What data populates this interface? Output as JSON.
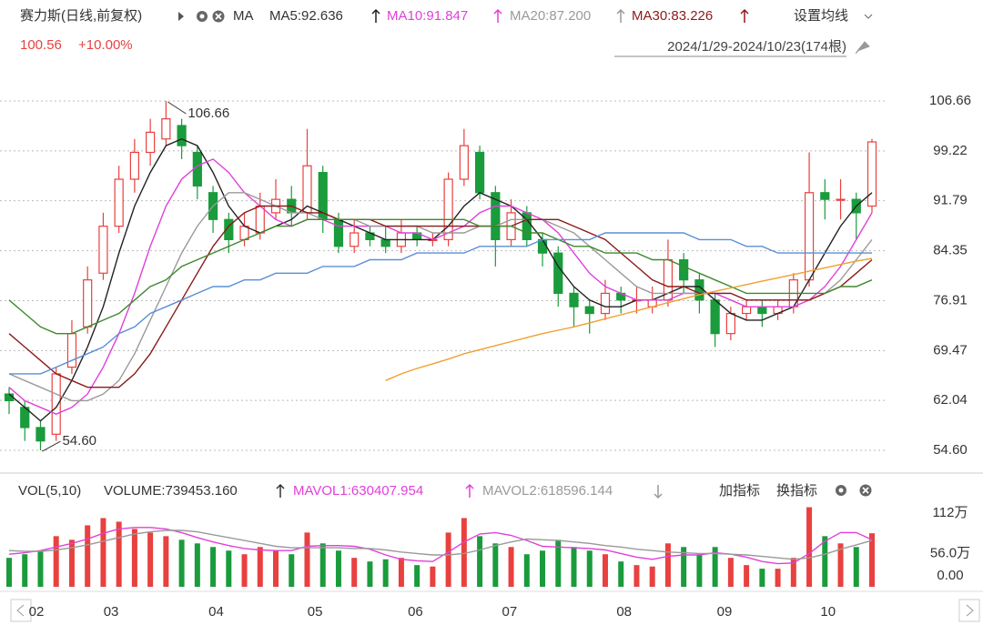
{
  "chart_data": [
    {
      "type": "candlestick",
      "title": "赛力斯(日线,前复权)",
      "indicator": "MA",
      "price": "100.56",
      "change": "+10.00%",
      "range_label": "2024/1/29-2024/10/23(174根)",
      "settings": "设置均线",
      "up_color": "#e8413f",
      "down_color": "#1a9b3c",
      "open": [
        63,
        61,
        58,
        57,
        67,
        73,
        81,
        88,
        95,
        99,
        101,
        103,
        99,
        93,
        89,
        86,
        87,
        90,
        92,
        90,
        96,
        89,
        85,
        87,
        86,
        85,
        87,
        86,
        86,
        95,
        99,
        93,
        86,
        90,
        86,
        84,
        78,
        76,
        75,
        78,
        77,
        76,
        77,
        83,
        80,
        77,
        72,
        75,
        76,
        75,
        76,
        80,
        93,
        92,
        92,
        91
      ],
      "high": [
        64,
        62,
        59,
        67,
        74,
        82,
        90,
        97,
        101,
        104,
        106.66,
        104,
        100,
        94,
        90,
        90,
        93,
        95,
        94,
        102.5,
        97,
        90,
        89,
        88,
        88,
        89,
        88,
        87,
        96,
        102.5,
        100,
        94,
        92,
        91,
        87,
        85,
        79,
        77,
        80,
        79,
        79,
        79,
        86,
        84,
        81,
        78,
        76,
        77,
        77,
        77,
        81,
        99,
        95,
        95,
        93,
        101
      ],
      "low": [
        60,
        56,
        54.6,
        56,
        66,
        72,
        80,
        87,
        93,
        97,
        100,
        98,
        92,
        87,
        84,
        85,
        86,
        89,
        88,
        89,
        87,
        84,
        84,
        85,
        84,
        84,
        85,
        85,
        85,
        94,
        92,
        82,
        85,
        85,
        82,
        76,
        73,
        72,
        74,
        75,
        75,
        75,
        76,
        78,
        75,
        70,
        71,
        74,
        73,
        74,
        75,
        79,
        89,
        89,
        86,
        90
      ],
      "close": [
        62,
        58,
        56,
        66,
        72,
        80,
        88,
        95,
        99,
        102,
        104,
        100,
        94,
        89,
        86,
        88,
        91,
        92,
        90,
        97,
        89,
        85,
        87,
        86,
        85,
        87,
        86,
        86,
        95,
        100,
        93,
        86,
        90,
        86,
        84,
        78,
        76,
        75,
        78,
        77,
        77,
        77,
        83,
        80,
        77,
        72,
        75,
        76,
        75,
        76,
        80,
        93,
        92,
        92,
        90,
        100.56
      ],
      "series": [
        {
          "name": "MA5:92.636",
          "color": "#222222",
          "values": [
            63,
            61,
            59,
            61,
            65,
            70,
            76,
            84,
            91,
            96,
            100,
            101,
            100,
            96,
            91,
            88,
            87,
            88,
            89,
            91,
            90,
            89,
            88,
            87,
            86,
            86,
            86,
            86,
            88,
            91,
            93,
            92,
            91,
            89,
            86,
            82,
            79,
            77,
            76,
            76,
            77,
            77,
            78,
            79,
            79,
            77,
            75,
            74,
            74,
            75,
            76,
            80,
            84,
            88,
            91,
            93
          ]
        },
        {
          "name": "MA10:91.847",
          "color": "#e040d8",
          "values": [
            64,
            62,
            61,
            60,
            61,
            63,
            67,
            72,
            78,
            85,
            91,
            95,
            97,
            98,
            96,
            93,
            91,
            89,
            88,
            89,
            89,
            88,
            88,
            88,
            88,
            87,
            87,
            86,
            87,
            88,
            90,
            91,
            91,
            90,
            89,
            87,
            84,
            81,
            79,
            78,
            77,
            77,
            77,
            78,
            78,
            78,
            77,
            76,
            76,
            76,
            76,
            77,
            79,
            82,
            86,
            90
          ]
        },
        {
          "name": "MA20:87.200",
          "color": "#9a9a9a",
          "values": [
            66,
            65,
            64,
            63,
            62,
            62,
            63,
            65,
            69,
            74,
            79,
            84,
            88,
            91,
            93,
            93,
            92,
            91,
            90,
            90,
            89,
            89,
            89,
            88,
            88,
            88,
            88,
            87,
            87,
            87,
            88,
            88,
            89,
            89,
            89,
            88,
            87,
            85,
            83,
            81,
            79,
            78,
            78,
            78,
            78,
            78,
            78,
            77,
            77,
            77,
            77,
            77,
            78,
            80,
            83,
            86
          ]
        },
        {
          "name": "MA30:83.226",
          "color": "#8b1a1a",
          "values": [
            72,
            70,
            68,
            66,
            65,
            64,
            64,
            64,
            66,
            69,
            73,
            77,
            81,
            85,
            88,
            90,
            91,
            91,
            91,
            90,
            90,
            89,
            89,
            89,
            88,
            88,
            88,
            88,
            88,
            88,
            88,
            88,
            88,
            89,
            89,
            89,
            88,
            87,
            86,
            84,
            82,
            80,
            79,
            79,
            78,
            78,
            78,
            77,
            77,
            77,
            77,
            77,
            78,
            79,
            81,
            83
          ]
        },
        {
          "color": "#3c8a2e",
          "values": [
            77,
            75,
            73,
            72,
            72,
            73,
            74,
            75,
            77,
            79,
            80,
            82,
            83,
            84,
            85,
            86,
            87,
            88,
            88,
            89,
            89,
            89,
            89,
            89,
            89,
            89,
            89,
            89,
            89,
            89,
            88,
            88,
            88,
            87,
            87,
            86,
            85,
            85,
            84,
            84,
            84,
            83,
            83,
            82,
            81,
            80,
            79,
            78,
            78,
            78,
            78,
            78,
            78,
            79,
            79,
            80
          ]
        },
        {
          "color": "#5b8fd6",
          "values": [
            66,
            66,
            66,
            67,
            68,
            69,
            70,
            72,
            73,
            75,
            76,
            77,
            78,
            79,
            79,
            80,
            80,
            81,
            81,
            81,
            82,
            82,
            82,
            83,
            83,
            83,
            84,
            84,
            84,
            84,
            85,
            85,
            85,
            85,
            86,
            86,
            86,
            86,
            87,
            87,
            87,
            87,
            87,
            87,
            86,
            86,
            86,
            85,
            85,
            84,
            84,
            84,
            84,
            84,
            84,
            84
          ]
        },
        {
          "color": "#f0a030",
          "values": [
            null,
            null,
            null,
            null,
            null,
            null,
            null,
            null,
            null,
            null,
            null,
            null,
            null,
            null,
            null,
            null,
            null,
            null,
            null,
            null,
            null,
            null,
            null,
            null,
            65,
            66,
            66.8,
            67.5,
            68.2,
            69,
            69.6,
            70.2,
            70.8,
            71.4,
            72,
            72.5,
            73,
            73.6,
            74.2,
            74.8,
            75.4,
            76,
            76.6,
            77.2,
            77.8,
            78.3,
            78.8,
            79.3,
            79.8,
            80.3,
            80.8,
            81.3,
            81.8,
            82.3,
            82.8,
            83.2
          ]
        }
      ],
      "annotations": [
        {
          "index": 10,
          "value": 106.66,
          "label": "106.66"
        },
        {
          "index": 2,
          "value": 54.6,
          "label": "54.60"
        }
      ],
      "ylim": [
        52.57,
        108.15
      ],
      "yticks": [
        106.66,
        99.22,
        91.79,
        84.35,
        76.91,
        69.47,
        62.04,
        {
          "value": 54.6,
          "label": "54.60"
        }
      ],
      "xticks": [
        {
          "value": 1.74,
          "label": "02"
        },
        {
          "value": 6.5,
          "label": "03"
        },
        {
          "value": 13.2,
          "label": "04"
        },
        {
          "value": 19.5,
          "label": "05"
        },
        {
          "value": 25.9,
          "label": "06"
        },
        {
          "value": 31.9,
          "label": "07"
        },
        {
          "value": 39.2,
          "label": "08"
        },
        {
          "value": 45.6,
          "label": "09"
        },
        {
          "value": 52.2,
          "label": "10"
        }
      ],
      "grid": true
    },
    {
      "type": "bar",
      "title": "VOL(5,10)",
      "volume_label": "VOLUME:739453.160",
      "buttons": [
        "加指标",
        "换指标"
      ],
      "values": [
        40,
        45,
        50,
        70,
        65,
        85,
        95,
        90,
        80,
        75,
        70,
        65,
        60,
        55,
        50,
        45,
        55,
        50,
        45,
        75,
        60,
        50,
        40,
        35,
        38,
        40,
        30,
        28,
        75,
        95,
        70,
        60,
        55,
        45,
        50,
        65,
        55,
        50,
        45,
        35,
        30,
        28,
        60,
        55,
        45,
        55,
        40,
        30,
        25,
        25,
        40,
        110,
        70,
        60,
        55,
        74
      ],
      "series": [
        {
          "name": "MAVOL1:630407.954",
          "color": "#e040d8",
          "values": [
            45,
            47,
            50,
            55,
            60,
            66,
            74,
            80,
            82,
            82,
            80,
            75,
            68,
            62,
            57,
            53,
            51,
            50,
            50,
            56,
            57,
            57,
            56,
            52,
            44,
            38,
            36,
            35,
            48,
            62,
            73,
            75,
            71,
            64,
            56,
            55,
            54,
            53,
            51,
            46,
            41,
            38,
            42,
            44,
            44,
            47,
            45,
            41,
            35,
            32,
            33,
            46,
            63,
            75,
            75,
            65
          ]
        },
        {
          "name": "MAVOL2:618596.144",
          "color": "#9a9a9a",
          "values": [
            50,
            49,
            49,
            51,
            54,
            58,
            63,
            68,
            73,
            76,
            78,
            78,
            76,
            72,
            68,
            64,
            60,
            56,
            54,
            54,
            54,
            54,
            53,
            53,
            51,
            48,
            46,
            44,
            44,
            46,
            51,
            57,
            62,
            66,
            65,
            64,
            62,
            60,
            57,
            55,
            52,
            50,
            48,
            47,
            46,
            46,
            45,
            44,
            42,
            40,
            38,
            40,
            45,
            52,
            58,
            64
          ]
        }
      ],
      "ylim": [
        0,
        122
      ],
      "yticks": [
        {
          "value": 112,
          "label": "112万"
        },
        {
          "value": 56,
          "label": "56.0万"
        },
        {
          "value": 0,
          "label": "0.00"
        }
      ]
    }
  ]
}
